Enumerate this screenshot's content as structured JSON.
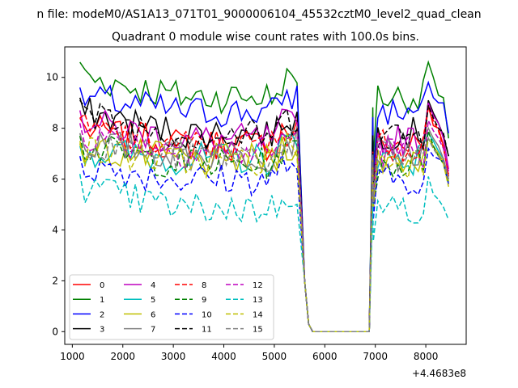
{
  "chart_data": {
    "type": "line",
    "suptitle": "n file: modeM0/AS1A13_071T01_9000006104_45532cztM0_level2_quad_clean",
    "title": "Quadrant 0 module wise count rates with 100.0s bins.",
    "offset_label": "+4.4683e8",
    "xlim": [
      850,
      8800
    ],
    "ylim": [
      -0.5,
      11.2
    ],
    "x_ticks": [
      1000,
      2000,
      3000,
      4000,
      5000,
      6000,
      7000,
      8000
    ],
    "y_ticks": [
      0,
      2,
      4,
      6,
      8,
      10
    ],
    "x": [
      1150,
      1250,
      1350,
      1450,
      1550,
      1650,
      1750,
      1850,
      1950,
      2050,
      2150,
      2250,
      2350,
      2450,
      2550,
      2650,
      2750,
      2850,
      2950,
      3050,
      3150,
      3250,
      3350,
      3450,
      3550,
      3650,
      3750,
      3850,
      3950,
      4050,
      4150,
      4250,
      4350,
      4450,
      4550,
      4650,
      4750,
      4850,
      4950,
      5050,
      5150,
      5250,
      5350,
      5450,
      5550,
      5650,
      5750,
      5850,
      5950,
      6050,
      6150,
      6250,
      6350,
      6450,
      6550,
      6650,
      6750,
      6850,
      6950,
      7050,
      7150,
      7250,
      7350,
      7450,
      7550,
      7650,
      7750,
      7850,
      7950,
      8050,
      8150,
      8250,
      8350,
      8450
    ],
    "gap": {
      "x": [
        5600,
        5680,
        5760,
        6800,
        6880,
        6960
      ],
      "y": [
        2,
        0.3,
        0,
        0,
        0,
        5.5
      ]
    },
    "series": [
      {
        "name": "0",
        "color": "#ff0000",
        "dash": "solid",
        "level": 7.35,
        "head": 8.4,
        "tail": [
          8.9,
          8.1,
          8.0,
          7.3,
          6.1
        ]
      },
      {
        "name": "1",
        "color": "#008000",
        "dash": "solid",
        "level": 9.25,
        "head": 10.6,
        "tail": [
          10.6,
          10.0,
          9.3,
          9.2,
          7.6
        ]
      },
      {
        "name": "2",
        "color": "#0000ff",
        "dash": "solid",
        "level": 8.65,
        "head": 9.6,
        "tail": [
          9.8,
          9.2,
          9.0,
          9.0,
          7.8
        ]
      },
      {
        "name": "3",
        "color": "#000000",
        "dash": "solid",
        "level": 7.8,
        "head": 9.2,
        "tail": [
          9.1,
          8.6,
          8.2,
          7.7,
          6.9
        ]
      },
      {
        "name": "4",
        "color": "#bf00bf",
        "dash": "solid",
        "level": 7.55,
        "head": 8.7,
        "tail": [
          9.0,
          8.5,
          8.2,
          7.6,
          6.4
        ]
      },
      {
        "name": "5",
        "color": "#00bfbf",
        "dash": "solid",
        "level": 6.8,
        "head": 7.3,
        "tail": [
          7.8,
          7.5,
          7.1,
          6.8,
          6.0
        ]
      },
      {
        "name": "6",
        "color": "#bfbf00",
        "dash": "solid",
        "level": 6.75,
        "head": 7.5,
        "tail": [
          7.6,
          7.3,
          7.0,
          6.7,
          5.9
        ]
      },
      {
        "name": "7",
        "color": "#808080",
        "dash": "solid",
        "level": 6.95,
        "head": 7.8,
        "tail": [
          8.0,
          7.6,
          7.3,
          6.8,
          6.0
        ]
      },
      {
        "name": "8",
        "color": "#ff0000",
        "dash": "6,3",
        "level": 7.35,
        "head": 8.4,
        "tail": [
          8.8,
          8.3,
          7.9,
          7.2,
          6.2
        ]
      },
      {
        "name": "9",
        "color": "#008000",
        "dash": "6,3",
        "level": 6.6,
        "head": 7.7,
        "tail": [
          7.9,
          7.3,
          6.9,
          6.6,
          5.8
        ]
      },
      {
        "name": "10",
        "color": "#0000ff",
        "dash": "6,3",
        "level": 6.0,
        "head": 6.9,
        "tail": [
          7.2,
          6.9,
          6.8,
          6.7,
          5.8
        ]
      },
      {
        "name": "11",
        "color": "#000000",
        "dash": "6,3",
        "level": 7.75,
        "head": 9.1,
        "tail": [
          8.9,
          8.4,
          8.0,
          7.8,
          6.9
        ]
      },
      {
        "name": "12",
        "color": "#bf00bf",
        "dash": "6,3",
        "level": 7.1,
        "head": 8.2,
        "tail": [
          8.3,
          7.9,
          7.6,
          7.2,
          6.3
        ]
      },
      {
        "name": "13",
        "color": "#00bfbf",
        "dash": "6,3",
        "level": 4.85,
        "head": 6.2,
        "tail": [
          6.1,
          5.4,
          5.2,
          4.9,
          4.4
        ]
      },
      {
        "name": "14",
        "color": "#bfbf00",
        "dash": "6,3",
        "level": 6.7,
        "head": 7.4,
        "tail": [
          7.6,
          7.2,
          6.9,
          6.6,
          5.7
        ]
      },
      {
        "name": "15",
        "color": "#808080",
        "dash": "6,3",
        "level": 6.95,
        "head": 7.8,
        "tail": [
          7.6,
          7.2,
          6.9,
          6.7,
          6.0
        ]
      }
    ],
    "grid": false,
    "legend_position": "lower-left",
    "legend_columns": 4
  }
}
